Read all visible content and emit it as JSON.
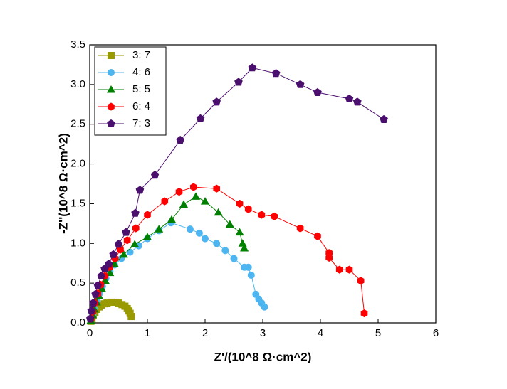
{
  "chart_data": {
    "type": "line",
    "x_label": "Z'/(10^8 Ω·cm^2)",
    "y_label": "-Z''(10^8 Ω·cm^2)",
    "xlim": [
      0,
      6
    ],
    "ylim": [
      0,
      3.5
    ],
    "xticks": [
      0,
      1,
      2,
      3,
      4,
      5,
      6
    ],
    "yticks": [
      {
        "value": 0,
        "label": "0.0"
      },
      0.5,
      {
        "value": 1,
        "label": "1.0"
      },
      1.5,
      {
        "value": 2,
        "label": "2.0"
      },
      2.5,
      {
        "value": 3,
        "label": "3.0"
      },
      3.5
    ],
    "legend": "top-left",
    "series": [
      {
        "name": "3: 7",
        "color": "#999900",
        "marker": "square",
        "x": [
          0.02,
          0.04,
          0.06,
          0.09,
          0.12,
          0.16,
          0.2,
          0.25,
          0.3,
          0.37,
          0.44,
          0.5,
          0.56,
          0.61,
          0.65,
          0.68,
          0.7,
          0.72
        ],
        "values": [
          0.02,
          0.05,
          0.09,
          0.13,
          0.17,
          0.2,
          0.22,
          0.24,
          0.25,
          0.26,
          0.26,
          0.25,
          0.23,
          0.21,
          0.18,
          0.15,
          0.12,
          0.08
        ]
      },
      {
        "name": "4: 6",
        "color": "#4db5f0",
        "marker": "circle",
        "x": [
          0.02,
          0.05,
          0.08,
          0.12,
          0.17,
          0.22,
          0.28,
          0.35,
          0.43,
          0.55,
          0.7,
          0.85,
          1.0,
          1.2,
          1.41,
          1.74,
          1.9,
          2.0,
          2.2,
          2.35,
          2.5,
          2.68,
          2.75,
          2.8,
          2.88,
          2.93,
          2.98,
          3.03
        ],
        "values": [
          0.03,
          0.1,
          0.18,
          0.27,
          0.37,
          0.46,
          0.56,
          0.65,
          0.73,
          0.81,
          0.89,
          0.97,
          1.06,
          1.16,
          1.26,
          1.18,
          1.13,
          1.06,
          1.0,
          0.91,
          0.81,
          0.7,
          0.7,
          0.6,
          0.36,
          0.3,
          0.25,
          0.2
        ]
      },
      {
        "name": "5: 5",
        "color": "#008000",
        "marker": "triangle",
        "x": [
          0.02,
          0.05,
          0.08,
          0.12,
          0.16,
          0.21,
          0.27,
          0.35,
          0.43,
          0.59,
          0.78,
          1.0,
          1.2,
          1.42,
          1.63,
          1.84,
          2.0,
          2.23,
          2.43,
          2.6,
          2.65,
          2.68
        ],
        "values": [
          0.03,
          0.1,
          0.17,
          0.26,
          0.34,
          0.43,
          0.53,
          0.63,
          0.74,
          0.86,
          0.99,
          1.08,
          1.18,
          1.3,
          1.49,
          1.59,
          1.53,
          1.39,
          1.24,
          1.14,
          1.0,
          0.94
        ]
      },
      {
        "name": "6: 4",
        "color": "#ff0000",
        "marker": "hexagon",
        "x": [
          0.02,
          0.05,
          0.09,
          0.14,
          0.19,
          0.26,
          0.34,
          0.44,
          0.53,
          0.65,
          0.8,
          1.0,
          1.3,
          1.55,
          1.8,
          2.2,
          2.6,
          2.75,
          2.98,
          3.2,
          3.65,
          3.95,
          4.15,
          4.15,
          4.33,
          4.5,
          4.7,
          4.76
        ],
        "values": [
          0.05,
          0.14,
          0.25,
          0.37,
          0.48,
          0.59,
          0.7,
          0.81,
          0.92,
          1.04,
          1.19,
          1.36,
          1.53,
          1.65,
          1.71,
          1.69,
          1.5,
          1.43,
          1.36,
          1.34,
          1.19,
          1.09,
          0.88,
          0.82,
          0.67,
          0.67,
          0.53,
          0.12
        ]
      },
      {
        "name": "7: 3",
        "color": "#4b0f6e",
        "marker": "pentagon",
        "x": [
          0.01,
          0.03,
          0.06,
          0.1,
          0.14,
          0.2,
          0.26,
          0.33,
          0.41,
          0.5,
          0.63,
          0.79,
          0.87,
          1.13,
          1.57,
          1.92,
          2.2,
          2.58,
          2.82,
          3.23,
          3.65,
          3.95,
          4.5,
          4.64,
          5.1
        ],
        "values": [
          0.05,
          0.15,
          0.25,
          0.36,
          0.47,
          0.59,
          0.68,
          0.74,
          0.86,
          0.99,
          1.14,
          1.38,
          1.67,
          1.86,
          2.3,
          2.57,
          2.78,
          3.03,
          3.21,
          3.14,
          3.0,
          2.9,
          2.82,
          2.78,
          2.56
        ]
      }
    ]
  }
}
